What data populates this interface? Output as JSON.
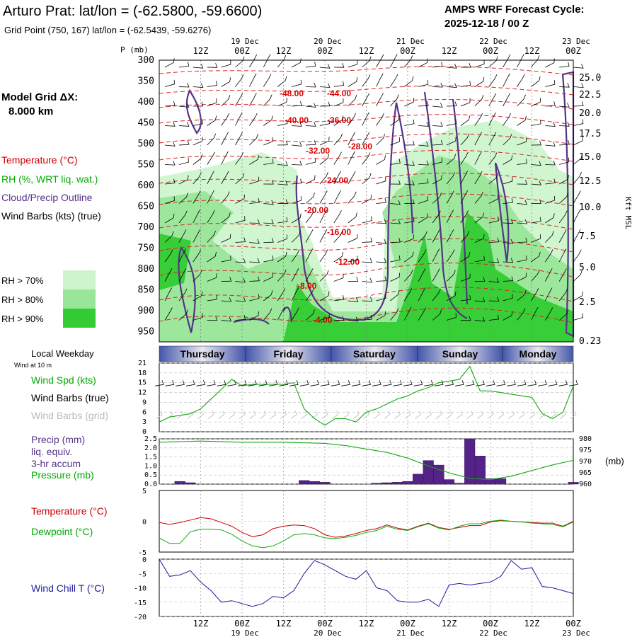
{
  "header": {
    "title": "Arturo Prat:  lat/lon = (-62.5800, -59.6600)",
    "grid_point": "Grid Point (750, 167) lat/lon = (-62.5439, -59.6276)",
    "cycle_line1": "AMPS WRF Forecast Cycle:",
    "cycle_line2": "2025-12-18 / 00  Z"
  },
  "legend": {
    "model_grid_line1": "Model Grid ΔX:",
    "model_grid_line2": "8.000 km",
    "temperature": "Temperature (°C)",
    "rh": "RH (%, WRT liq. wat.)",
    "cloud": "Cloud/Precip Outline",
    "wind": "Wind Barbs (kts) (true)",
    "rh70": "RH > 70%",
    "rh80": "RH > 80%",
    "rh90": "RH > 90%",
    "local_weekday": "Local Weekday",
    "wind_at_10m": "Wind at 10 m",
    "wind_spd": "Wind Spd (kts)",
    "wind_barbs_true": "Wind Barbs (true)",
    "wind_barbs_grid": "Wind Barbs (grid)",
    "precip1": "Precip (mm)",
    "precip2": "liq. equiv.",
    "precip3": "3-hr accum",
    "pressure": "Pressure (mb)",
    "pressure_unit": "(mb)",
    "temp2": "Temperature (°C)",
    "dewpoint": "Dewpoint (°C)",
    "windchill": "Wind Chill T (°C)",
    "p_axis_label": "P (mb)",
    "kft_label": "Kft MSL"
  },
  "colors": {
    "temperature": "#cc0000",
    "rh_text": "#00aa00",
    "cloud": "#553388",
    "rh70": "#ccf5cc",
    "rh80": "#99e699",
    "rh90": "#33cc33",
    "windchill": "#1a1a99",
    "precip_bar": "#552288",
    "weekday_band_dark": "#4455aa",
    "weekday_band_light": "#e8e8f0"
  },
  "chart_data": [
    {
      "type": "time-height cross section",
      "x_top_ticks": [
        "12Z",
        "00Z",
        "12Z",
        "00Z",
        "12Z",
        "00Z",
        "12Z",
        "00Z",
        "12Z",
        "00Z"
      ],
      "x_top_dates": [
        "19 Dec",
        "20 Dec",
        "21 Dec",
        "22 Dec",
        "23 Dec"
      ],
      "pressure_ticks": [
        "300",
        "350",
        "400",
        "450",
        "500",
        "550",
        "600",
        "650",
        "700",
        "750",
        "800",
        "850",
        "900",
        "950"
      ],
      "height_ticks": [
        "25.0",
        "22.5",
        "20.0",
        "17.5",
        "15.0",
        "12.5",
        "10.0",
        "7.5",
        "5.0",
        "2.5",
        "0.23"
      ],
      "isotherm_labels": [
        "-48.00",
        "-44.00",
        "-40.00",
        "-36.00",
        "-32.00",
        "-28.00",
        "-24.00",
        "-20.00",
        "-16.00",
        "-12.00",
        "-8.00",
        "-4.00"
      ]
    },
    {
      "type": "line",
      "title": "Wind Spd (kts)",
      "x_range_hours": [
        0,
        120
      ],
      "ylim": [
        0,
        21
      ],
      "y_ticks": [
        "21",
        "18",
        "15",
        "12",
        "9",
        "6",
        "3",
        "0"
      ],
      "x": [
        0,
        3,
        6,
        9,
        12,
        15,
        18,
        21,
        24,
        27,
        30,
        33,
        36,
        39,
        42,
        45,
        48,
        51,
        54,
        57,
        60,
        63,
        66,
        69,
        72,
        75,
        78,
        81,
        84,
        87,
        90,
        93,
        96,
        99,
        102,
        105,
        108,
        111,
        114,
        117,
        120
      ],
      "values": [
        3,
        4.5,
        5,
        5.5,
        7,
        10,
        13,
        16,
        14,
        14.5,
        14.5,
        14.5,
        14.5,
        15,
        7,
        4,
        2,
        4,
        4,
        3,
        6,
        7,
        8.5,
        10,
        11,
        12.5,
        13.5,
        15,
        15.5,
        16,
        20,
        12.5,
        12.5,
        12,
        11.5,
        11,
        10.5,
        5.5,
        4,
        6,
        14
      ]
    },
    {
      "type": "bar+line",
      "precip_ylim": [
        0,
        2.5
      ],
      "precip_ticks": [
        "2.5",
        "2.0",
        "1.5",
        "1.0",
        "0.5",
        "0.0"
      ],
      "pressure_ticks": [
        "980",
        "975",
        "970",
        "965",
        "960"
      ],
      "precip_x": [
        6,
        9,
        42,
        45,
        48,
        63,
        66,
        69,
        72,
        75,
        78,
        81,
        84,
        87,
        90,
        93,
        96,
        99,
        120
      ],
      "precip_values": [
        0.15,
        0.08,
        0.2,
        0.15,
        0.1,
        0.05,
        0.08,
        0.1,
        0.15,
        0.55,
        1.3,
        1.05,
        0.25,
        0.05,
        2.5,
        1.55,
        0.3,
        0.3,
        0.1
      ],
      "pressure_x": [
        0,
        12,
        24,
        36,
        48,
        54,
        60,
        66,
        72,
        78,
        84,
        90,
        96,
        102,
        108,
        114,
        120
      ],
      "pressure_values": [
        978.5,
        979,
        978.5,
        978.5,
        978,
        977,
        975.5,
        974,
        971.5,
        968,
        965,
        962.5,
        962,
        963.5,
        966,
        968.5,
        970.5
      ]
    },
    {
      "type": "line",
      "ylim": [
        -5,
        5
      ],
      "y_ticks": [
        "5",
        "0",
        "-5"
      ],
      "series": [
        {
          "name": "Temperature (°C)",
          "x": [
            0,
            3,
            6,
            9,
            12,
            15,
            18,
            21,
            24,
            27,
            30,
            33,
            36,
            39,
            42,
            45,
            48,
            51,
            54,
            57,
            60,
            63,
            66,
            69,
            72,
            75,
            78,
            81,
            84,
            87,
            90,
            93,
            96,
            99,
            102,
            105,
            108,
            111,
            114,
            117,
            120
          ],
          "values": [
            -0.2,
            -0.5,
            -0.2,
            0.2,
            0.6,
            0.4,
            -0.2,
            -0.8,
            -1.8,
            -2.5,
            -2.2,
            -1.2,
            -0.8,
            -0.6,
            -0.7,
            -1.2,
            -2.2,
            -2.6,
            -2.4,
            -2.0,
            -1.5,
            -1.2,
            -0.6,
            -1.1,
            -1.4,
            -0.8,
            -0.3,
            -1.0,
            -1.3,
            -1.0,
            -0.7,
            -0.7,
            -0.1,
            0.1,
            0.0,
            -0.1,
            -0.2,
            -0.3,
            -0.3,
            -0.8,
            0.0
          ]
        },
        {
          "name": "Dewpoint (°C)",
          "x": [
            0,
            3,
            6,
            9,
            12,
            15,
            18,
            21,
            24,
            27,
            30,
            33,
            36,
            39,
            42,
            45,
            48,
            51,
            54,
            57,
            60,
            63,
            66,
            69,
            72,
            75,
            78,
            81,
            84,
            87,
            90,
            93,
            96,
            99,
            102,
            105,
            108,
            111,
            114,
            117,
            120
          ],
          "values": [
            -2.7,
            -3.6,
            -3.6,
            -1.7,
            -1.3,
            -1.3,
            -1.4,
            -2.1,
            -3.2,
            -4.0,
            -4.3,
            -4.0,
            -3.2,
            -2.2,
            -2.0,
            -2.2,
            -2.7,
            -2.8,
            -2.6,
            -2.3,
            -1.8,
            -1.5,
            -0.8,
            -1.3,
            -1.5,
            -0.9,
            -0.4,
            -1.1,
            -1.4,
            -0.8,
            -0.4,
            -0.4,
            0.0,
            0.2,
            0.0,
            -0.1,
            -0.3,
            -0.4,
            -0.5,
            -0.9,
            -0.1
          ]
        }
      ]
    },
    {
      "type": "line",
      "ylim": [
        -20,
        0
      ],
      "y_ticks": [
        "0",
        "-5",
        "-10",
        "-15",
        "-20"
      ],
      "x_bottom_ticks": [
        "12Z",
        "00Z",
        "12Z",
        "00Z",
        "12Z",
        "00Z",
        "12Z",
        "00Z",
        "12Z",
        "00Z"
      ],
      "x_bottom_dates": [
        "19 Dec",
        "20 Dec",
        "21 Dec",
        "22 Dec",
        "23 Dec"
      ],
      "series": [
        {
          "name": "Wind Chill T (°C)",
          "x": [
            0,
            3,
            6,
            9,
            12,
            15,
            18,
            21,
            24,
            27,
            30,
            33,
            36,
            39,
            42,
            45,
            48,
            51,
            54,
            57,
            60,
            63,
            66,
            69,
            72,
            75,
            78,
            81,
            84,
            87,
            90,
            93,
            96,
            99,
            102,
            105,
            108,
            111,
            114,
            117,
            120
          ],
          "values": [
            0,
            -6,
            -5.5,
            -4,
            -8,
            -11,
            -15,
            -14.5,
            -15.5,
            -16.5,
            -15.5,
            -13,
            -13.5,
            -11,
            -5,
            -0.5,
            -2,
            -4,
            -6,
            -7,
            -4,
            -10,
            -11,
            -14.5,
            -15,
            -15,
            -14,
            -16.5,
            -9,
            -8.5,
            -9,
            -8.5,
            -8,
            -6,
            -0.5,
            -3.5,
            -3,
            -9.5,
            -10,
            -11,
            -12
          ]
        }
      ]
    }
  ],
  "weekdays": [
    "Thursday",
    "Friday",
    "Saturday",
    "Sunday",
    "Monday"
  ]
}
